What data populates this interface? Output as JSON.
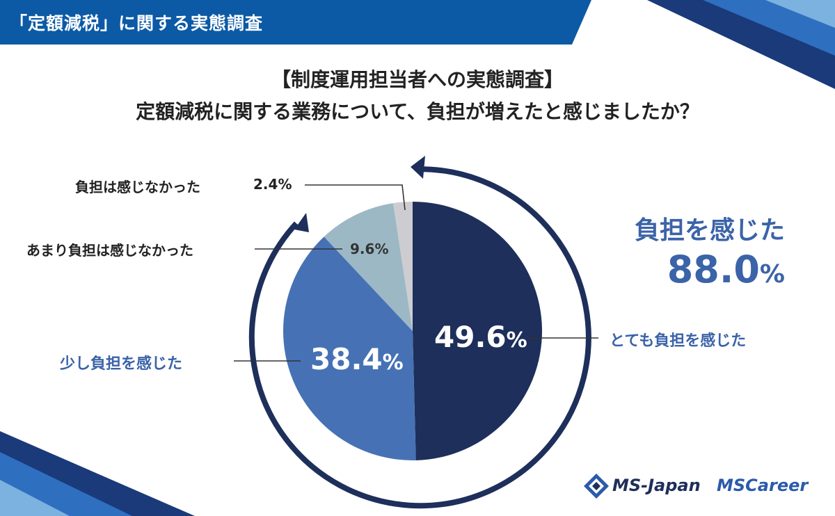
{
  "header": {
    "title": "「定額減税」に関する実態調査"
  },
  "headline": {
    "line1": "【制度運用担当者への実態調査】",
    "line2": "定額減税に関する業務について、負担が増えたと感じましたか？"
  },
  "summary": {
    "label": "負担を感じた",
    "value": "88.0",
    "unit": "%"
  },
  "colors": {
    "header_blue": "#0c5aa6",
    "navy": "#1d2f5a",
    "mid_blue": "#4672b5",
    "light_blue_gray": "#9cb8c4",
    "light_gray": "#cdcdd1",
    "accent_text": "#3b63a8"
  },
  "chart_data": {
    "type": "pie",
    "title": "定額減税に関する業務について、負担が増えたと感じましたか？",
    "unit": "%",
    "slices": [
      {
        "label": "とても負担を感じた",
        "value": 49.6,
        "value_text": "49.6",
        "color": "#1d2f5a"
      },
      {
        "label": "少し負担を感じた",
        "value": 38.4,
        "value_text": "38.4",
        "color": "#4672b5"
      },
      {
        "label": "あまり負担は感じなかった",
        "value": 9.6,
        "value_text": "9.6",
        "color": "#9cb8c4"
      },
      {
        "label": "負担は感じなかった",
        "value": 2.4,
        "value_text": "2.4",
        "color": "#cdcdd1"
      }
    ]
  },
  "logos": {
    "ms_japan": "MS-Japan",
    "mscareer": "MSCareer"
  }
}
